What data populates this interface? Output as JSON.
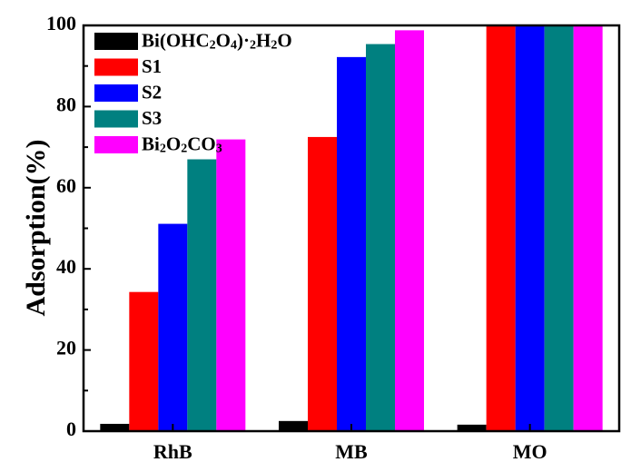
{
  "chart_data": {
    "type": "bar",
    "title": "",
    "xlabel": "",
    "ylabel": "Adsorption(%)",
    "ylim": [
      0,
      100
    ],
    "yticks": [
      0,
      20,
      40,
      60,
      80,
      100
    ],
    "categories": [
      "RhB",
      "MB",
      "MO"
    ],
    "legend_position": "top-left",
    "grid": false,
    "series": [
      {
        "name": "Bi(OHC2O4)·2H2O",
        "color": "#000000",
        "values": [
          1.8,
          2.5,
          1.6
        ]
      },
      {
        "name": "S1",
        "color": "#ff0000",
        "values": [
          34.3,
          72.5,
          100
        ]
      },
      {
        "name": "S2",
        "color": "#0000ff",
        "values": [
          51.1,
          92.2,
          100
        ]
      },
      {
        "name": "S3",
        "color": "#008080",
        "values": [
          67.0,
          95.4,
          100
        ]
      },
      {
        "name": "Bi2O2CO3",
        "color": "#ff00ff",
        "values": [
          71.9,
          98.8,
          100
        ]
      }
    ]
  }
}
